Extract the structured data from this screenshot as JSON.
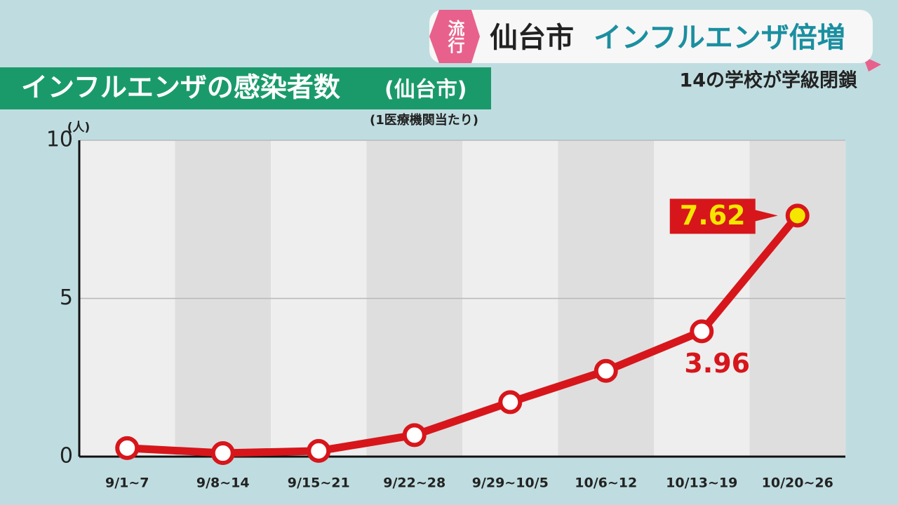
{
  "header": {
    "badge": "流行",
    "location": "仙台市",
    "headline": "インフルエンザ倍増",
    "subheadline": "14の学校が学級閉鎖"
  },
  "chart_data": {
    "type": "line",
    "title": "インフルエンザの感染者数",
    "title_note": "(仙台市)",
    "subtitle": "(1医療機関当たり)",
    "y_label": "(人)",
    "categories": [
      "9/1~7",
      "9/8~14",
      "9/15~21",
      "9/22~28",
      "9/29~10/5",
      "10/6~12",
      "10/13~19",
      "10/20~26"
    ],
    "series": [
      {
        "color": "#d7161b",
        "highlight_color": "#f5e600",
        "values": [
          0.27,
          0.11,
          0.18,
          0.68,
          1.72,
          2.71,
          3.96,
          7.62
        ],
        "value_labels": [
          null,
          null,
          null,
          null,
          null,
          null,
          "3.96",
          "7.62"
        ]
      }
    ],
    "ylim": [
      0,
      10
    ],
    "yticks": [
      0,
      5,
      10
    ],
    "grid": true
  }
}
